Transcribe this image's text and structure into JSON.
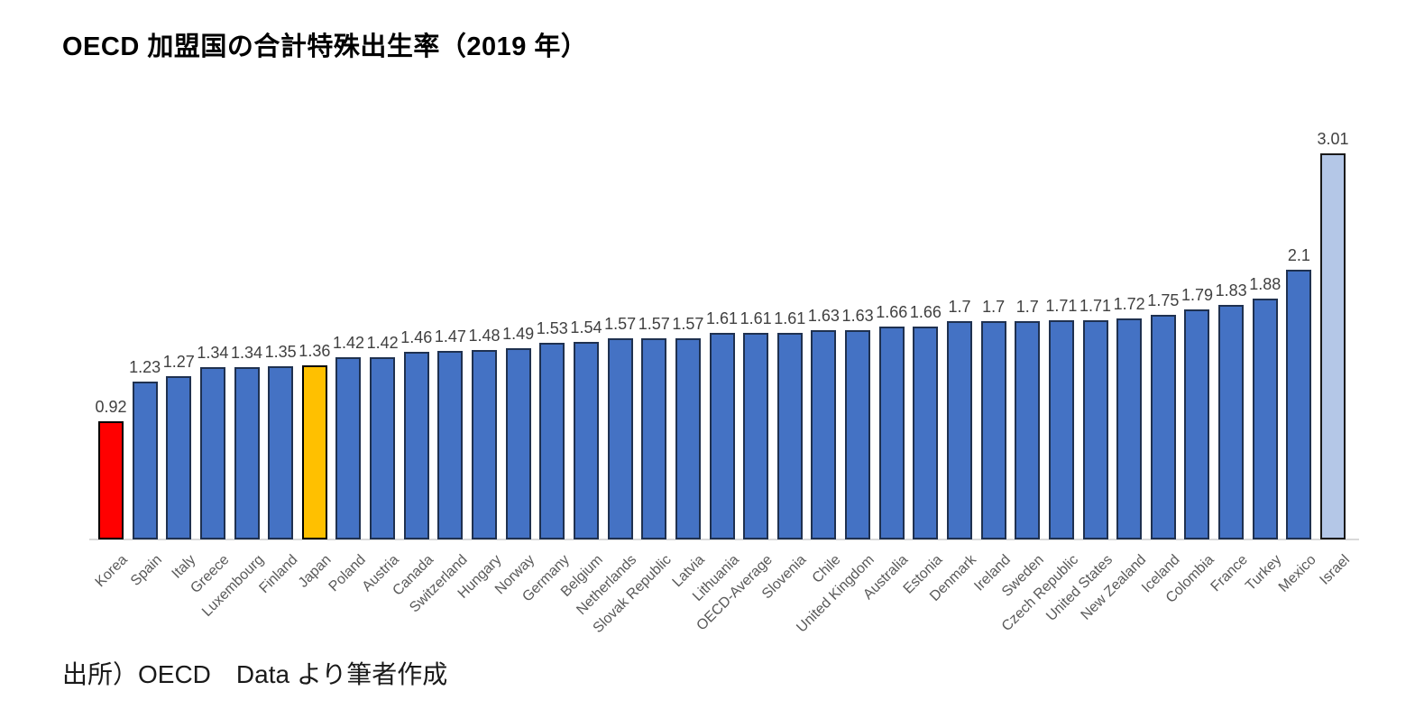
{
  "page": {
    "title": "OECD 加盟国の合計特殊出生率（2019 年）",
    "source": "出所）OECD　Data より筆者作成"
  },
  "chart_data": {
    "type": "bar",
    "title": "OECD 加盟国の合計特殊出生率（2019 年）",
    "xlabel": "",
    "ylabel": "",
    "ylim": [
      0,
      3.2
    ],
    "gridlines": false,
    "legend": "none",
    "value_labels_shown": true,
    "category_label_rotation_deg": 45,
    "categories": [
      "Korea",
      "Spain",
      "Italy",
      "Greece",
      "Luxembourg",
      "Finland",
      "Japan",
      "Poland",
      "Austria",
      "Canada",
      "Switzerland",
      "Hungary",
      "Norway",
      "Germany",
      "Belgium",
      "Netherlands",
      "Slovak Republic",
      "Latvia",
      "Lithuania",
      "OECD-Average",
      "Slovenia",
      "Chile",
      "United Kingdom",
      "Australia",
      "Estonia",
      "Denmark",
      "Ireland",
      "Sweden",
      "Czech Republic",
      "United States",
      "New Zealand",
      "Iceland",
      "Colombia",
      "France",
      "Turkey",
      "Mexico",
      "Israel"
    ],
    "points": [
      {
        "country": "Korea",
        "value": 0.92,
        "label": "0.92",
        "fill": "#ff0000",
        "stroke": "#000000"
      },
      {
        "country": "Spain",
        "value": 1.23,
        "label": "1.23"
      },
      {
        "country": "Italy",
        "value": 1.27,
        "label": "1.27"
      },
      {
        "country": "Greece",
        "value": 1.34,
        "label": "1.34"
      },
      {
        "country": "Luxembourg",
        "value": 1.34,
        "label": "1.34"
      },
      {
        "country": "Finland",
        "value": 1.35,
        "label": "1.35"
      },
      {
        "country": "Japan",
        "value": 1.36,
        "label": "1.36",
        "fill": "#ffc000",
        "stroke": "#000000"
      },
      {
        "country": "Poland",
        "value": 1.42,
        "label": "1.42"
      },
      {
        "country": "Austria",
        "value": 1.42,
        "label": "1.42"
      },
      {
        "country": "Canada",
        "value": 1.46,
        "label": "1.46"
      },
      {
        "country": "Switzerland",
        "value": 1.47,
        "label": "1.47"
      },
      {
        "country": "Hungary",
        "value": 1.48,
        "label": "1.48"
      },
      {
        "country": "Norway",
        "value": 1.49,
        "label": "1.49"
      },
      {
        "country": "Germany",
        "value": 1.53,
        "label": "1.53"
      },
      {
        "country": "Belgium",
        "value": 1.54,
        "label": "1.54"
      },
      {
        "country": "Netherlands",
        "value": 1.57,
        "label": "1.57"
      },
      {
        "country": "Slovak Republic",
        "value": 1.57,
        "label": "1.57"
      },
      {
        "country": "Latvia",
        "value": 1.57,
        "label": "1.57"
      },
      {
        "country": "Lithuania",
        "value": 1.61,
        "label": "1.61"
      },
      {
        "country": "OECD-Average",
        "value": 1.61,
        "label": "1.61"
      },
      {
        "country": "Slovenia",
        "value": 1.61,
        "label": "1.61"
      },
      {
        "country": "Chile",
        "value": 1.63,
        "label": "1.63"
      },
      {
        "country": "United Kingdom",
        "value": 1.63,
        "label": "1.63"
      },
      {
        "country": "Australia",
        "value": 1.66,
        "label": "1.66"
      },
      {
        "country": "Estonia",
        "value": 1.66,
        "label": "1.66"
      },
      {
        "country": "Denmark",
        "value": 1.7,
        "label": "1.7"
      },
      {
        "country": "Ireland",
        "value": 1.7,
        "label": "1.7"
      },
      {
        "country": "Sweden",
        "value": 1.7,
        "label": "1.7"
      },
      {
        "country": "Czech Republic",
        "value": 1.71,
        "label": "1.71"
      },
      {
        "country": "United States",
        "value": 1.71,
        "label": "1.71"
      },
      {
        "country": "New Zealand",
        "value": 1.72,
        "label": "1.72"
      },
      {
        "country": "Iceland",
        "value": 1.75,
        "label": "1.75"
      },
      {
        "country": "Colombia",
        "value": 1.79,
        "label": "1.79"
      },
      {
        "country": "France",
        "value": 1.83,
        "label": "1.83"
      },
      {
        "country": "Turkey",
        "value": 1.88,
        "label": "1.88"
      },
      {
        "country": "Mexico",
        "value": 2.1,
        "label": "2.1"
      },
      {
        "country": "Israel",
        "value": 3.01,
        "label": "3.01",
        "fill": "#b4c7e7",
        "stroke": "#1a1a1a"
      }
    ],
    "colors": {
      "default_fill": "#4472c4",
      "default_stroke": "#1f3150",
      "korea_highlight": "#ff0000",
      "japan_highlight": "#ffc000",
      "israel_highlight": "#b4c7e7",
      "axis_line": "#d9d9d9",
      "value_label_text": "#404040",
      "category_label_text": "#595959",
      "title_text": "#000000",
      "background": "#ffffff"
    }
  }
}
